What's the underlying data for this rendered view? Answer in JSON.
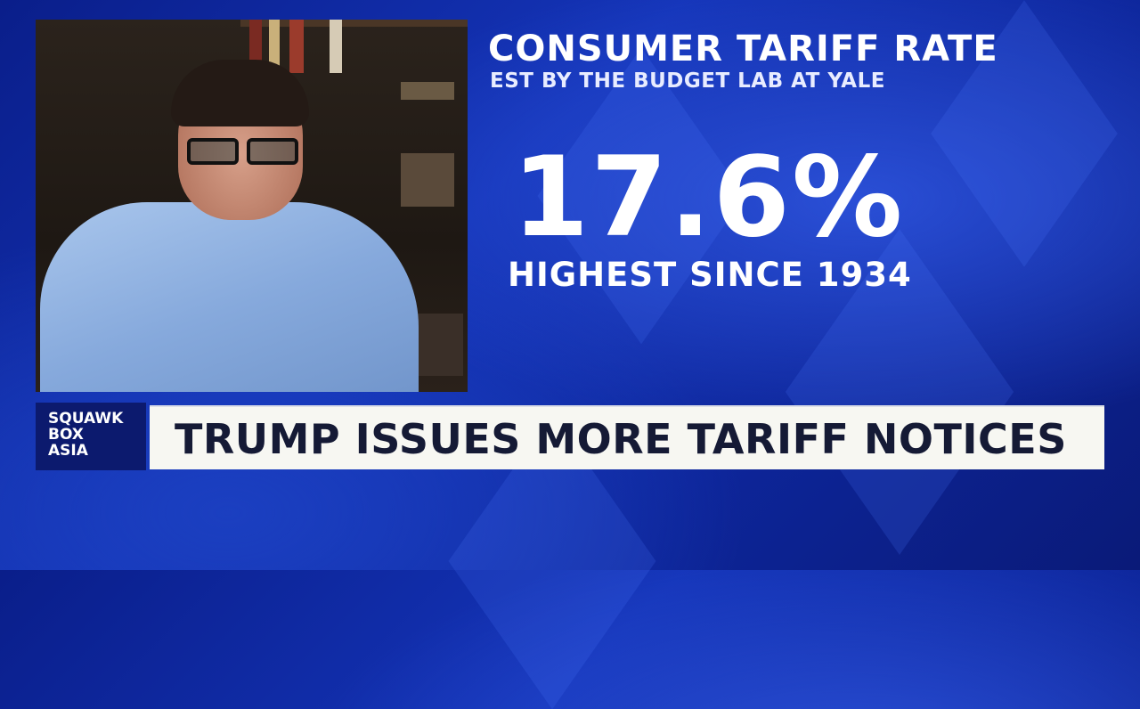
{
  "graphic": {
    "headline": "CONSUMER TARIFF RATE",
    "subtitle": "EST BY THE BUDGET LAB AT YALE",
    "rate": "17.6%",
    "note": "HIGHEST SINCE 1934"
  },
  "show_logo": {
    "line1": "SQUAWK",
    "line2": "BOX",
    "line3": "ASIA"
  },
  "lower_third": {
    "text": "TRUMP ISSUES MORE TARIFF NOTICES"
  },
  "colors": {
    "background": "#1434b8",
    "banner": "#f7f7f2",
    "banner_text": "#151a35",
    "logo_box": "#0c1a6e"
  }
}
